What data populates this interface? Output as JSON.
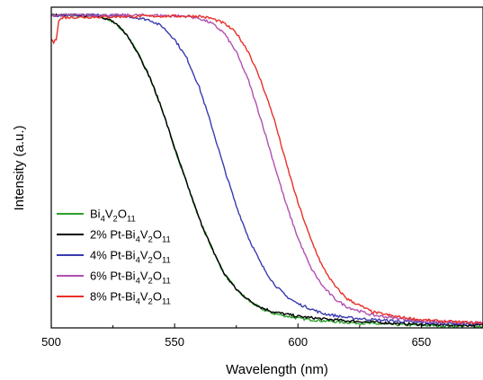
{
  "chart_data": {
    "type": "line",
    "xlabel": "Wavelength (nm)",
    "ylabel": "Intensity (a.u.)",
    "xlim": [
      500,
      675
    ],
    "ylim": [
      0,
      1
    ],
    "x_ticks": [
      500,
      550,
      600,
      650
    ],
    "y_ticks_shown": false,
    "grid": false,
    "legend_position": "bottom-left",
    "series": [
      {
        "name": "Bi4V2O11",
        "legend": {
          "base": "Bi",
          "s1": "4",
          "m1": "V",
          "s2": "2",
          "m2": "O",
          "s3": "11"
        },
        "color": "#2ca02c",
        "half_point_nm": 553,
        "x": [
          500,
          510,
          520,
          525,
          530,
          535,
          540,
          545,
          550,
          555,
          560,
          565,
          570,
          575,
          580,
          585,
          590,
          600,
          610,
          620,
          630,
          640,
          650,
          660,
          675
        ],
        "y": [
          0.975,
          0.975,
          0.972,
          0.955,
          0.92,
          0.86,
          0.78,
          0.68,
          0.56,
          0.45,
          0.34,
          0.25,
          0.17,
          0.12,
          0.085,
          0.06,
          0.045,
          0.03,
          0.022,
          0.017,
          0.013,
          0.01,
          0.008,
          0.006,
          0.005
        ]
      },
      {
        "name": "2% Pt-Bi4V2O11",
        "legend": {
          "base": "2% Pt-Bi",
          "s1": "4",
          "m1": "V",
          "s2": "2",
          "m2": "O",
          "s3": "11"
        },
        "color": "#000000",
        "half_point_nm": 553,
        "x": [
          500,
          510,
          520,
          525,
          530,
          535,
          540,
          545,
          550,
          555,
          560,
          565,
          570,
          575,
          580,
          585,
          590,
          600,
          610,
          620,
          630,
          640,
          650,
          660,
          675
        ],
        "y": [
          0.975,
          0.975,
          0.972,
          0.955,
          0.92,
          0.86,
          0.78,
          0.68,
          0.56,
          0.45,
          0.34,
          0.25,
          0.17,
          0.12,
          0.087,
          0.064,
          0.05,
          0.036,
          0.028,
          0.022,
          0.018,
          0.014,
          0.011,
          0.009,
          0.008
        ]
      },
      {
        "name": "4% Pt-Bi4V2O11",
        "legend": {
          "base": "4% Pt-Bi",
          "s1": "4",
          "m1": "V",
          "s2": "2",
          "m2": "O",
          "s3": "11"
        },
        "color": "#3a3ab0",
        "half_point_nm": 568,
        "x": [
          500,
          520,
          530,
          540,
          545,
          550,
          555,
          560,
          565,
          570,
          575,
          580,
          585,
          590,
          595,
          600,
          610,
          620,
          630,
          640,
          650,
          660,
          675
        ],
        "y": [
          0.975,
          0.975,
          0.973,
          0.96,
          0.94,
          0.9,
          0.84,
          0.75,
          0.63,
          0.5,
          0.38,
          0.28,
          0.2,
          0.14,
          0.1,
          0.075,
          0.045,
          0.032,
          0.026,
          0.021,
          0.017,
          0.014,
          0.012
        ]
      },
      {
        "name": "6% Pt-Bi4V2O11",
        "legend": {
          "base": "6% Pt-Bi",
          "s1": "4",
          "m1": "V",
          "s2": "2",
          "m2": "O",
          "s3": "11"
        },
        "color": "#b050b0",
        "half_point_nm": 588,
        "x": [
          500,
          540,
          555,
          560,
          565,
          570,
          575,
          580,
          585,
          590,
          595,
          600,
          605,
          610,
          615,
          620,
          630,
          640,
          650,
          660,
          675
        ],
        "y": [
          0.975,
          0.975,
          0.972,
          0.965,
          0.95,
          0.92,
          0.86,
          0.77,
          0.65,
          0.52,
          0.39,
          0.28,
          0.19,
          0.13,
          0.09,
          0.065,
          0.04,
          0.03,
          0.022,
          0.018,
          0.015
        ]
      },
      {
        "name": "8% Pt-Bi4V2O11",
        "legend": {
          "base": "8% Pt-Bi",
          "s1": "4",
          "m1": "V",
          "s2": "2",
          "m2": "O",
          "s3": "11"
        },
        "color": "#e8302a",
        "half_point_nm": 592,
        "x": [
          500,
          501,
          502,
          503,
          505,
          540,
          560,
          565,
          570,
          575,
          580,
          585,
          590,
          595,
          600,
          605,
          610,
          615,
          620,
          630,
          640,
          650,
          660,
          675
        ],
        "y": [
          0.9,
          0.89,
          0.9,
          0.96,
          0.968,
          0.972,
          0.972,
          0.965,
          0.95,
          0.92,
          0.86,
          0.77,
          0.66,
          0.52,
          0.39,
          0.28,
          0.19,
          0.13,
          0.09,
          0.05,
          0.035,
          0.025,
          0.02,
          0.015
        ]
      }
    ]
  }
}
